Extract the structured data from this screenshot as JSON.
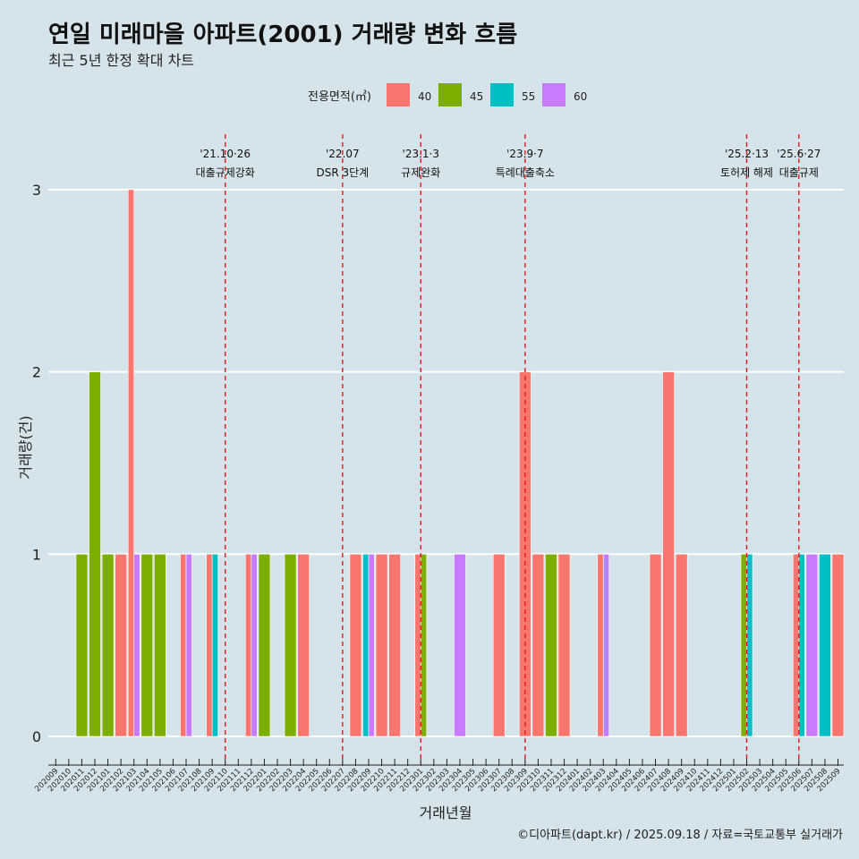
{
  "header": {
    "title": "연일 미래마을 아파트(2001) 거래량 변화 흐름",
    "subtitle": "최근 5년 한정 확대 차트"
  },
  "caption": "©디아파트(dapt.kr) / 2025.09.18 / 자료=국토교통부 실거래가",
  "colors": {
    "background": "#d5e3ea",
    "grid": "#ffffff",
    "event_line": "#e41a1c",
    "series": {
      "40": "#f8766d",
      "45": "#7cae00",
      "55": "#00bfc4",
      "60": "#c77cff"
    }
  },
  "chart_data": {
    "type": "bar",
    "stacking": "dodge",
    "xlabel": "거래년월",
    "ylabel": "거래량(건)",
    "ylim": [
      0,
      3
    ],
    "yticks": [
      0,
      1,
      2,
      3
    ],
    "legend": {
      "title": "전용면적(㎡)",
      "position": "top",
      "entries": [
        "40",
        "45",
        "55",
        "60"
      ]
    },
    "categories": [
      "202009",
      "202010",
      "202011",
      "202012",
      "202101",
      "202102",
      "202103",
      "202104",
      "202105",
      "202106",
      "202107",
      "202108",
      "202109",
      "202110",
      "202111",
      "202112",
      "202201",
      "202202",
      "202203",
      "202204",
      "202205",
      "202206",
      "202207",
      "202208",
      "202209",
      "202210",
      "202211",
      "202212",
      "202301",
      "202302",
      "202303",
      "202304",
      "202305",
      "202306",
      "202307",
      "202308",
      "202309",
      "202310",
      "202311",
      "202312",
      "202401",
      "202402",
      "202403",
      "202404",
      "202405",
      "202406",
      "202407",
      "202408",
      "202409",
      "202410",
      "202411",
      "202412",
      "202501",
      "202502",
      "202503",
      "202504",
      "202505",
      "202506",
      "202507",
      "202508",
      "202509"
    ],
    "data": [
      {
        "month": "202011",
        "area": "45",
        "value": 1
      },
      {
        "month": "202012",
        "area": "45",
        "value": 2
      },
      {
        "month": "202101",
        "area": "45",
        "value": 1
      },
      {
        "month": "202102",
        "area": "40",
        "value": 1
      },
      {
        "month": "202103",
        "area": "40",
        "value": 3
      },
      {
        "month": "202103",
        "area": "60",
        "value": 1
      },
      {
        "month": "202104",
        "area": "45",
        "value": 1
      },
      {
        "month": "202105",
        "area": "45",
        "value": 1
      },
      {
        "month": "202107",
        "area": "40",
        "value": 1
      },
      {
        "month": "202107",
        "area": "60",
        "value": 1
      },
      {
        "month": "202109",
        "area": "40",
        "value": 1
      },
      {
        "month": "202109",
        "area": "55",
        "value": 1
      },
      {
        "month": "202112",
        "area": "40",
        "value": 1
      },
      {
        "month": "202112",
        "area": "60",
        "value": 1
      },
      {
        "month": "202201",
        "area": "45",
        "value": 1
      },
      {
        "month": "202203",
        "area": "45",
        "value": 1
      },
      {
        "month": "202204",
        "area": "40",
        "value": 1
      },
      {
        "month": "202208",
        "area": "40",
        "value": 1
      },
      {
        "month": "202209",
        "area": "55",
        "value": 1
      },
      {
        "month": "202209",
        "area": "60",
        "value": 1
      },
      {
        "month": "202210",
        "area": "40",
        "value": 1
      },
      {
        "month": "202211",
        "area": "40",
        "value": 1
      },
      {
        "month": "202301",
        "area": "40",
        "value": 1
      },
      {
        "month": "202301",
        "area": "45",
        "value": 1
      },
      {
        "month": "202304",
        "area": "60",
        "value": 1
      },
      {
        "month": "202307",
        "area": "40",
        "value": 1
      },
      {
        "month": "202309",
        "area": "40",
        "value": 2
      },
      {
        "month": "202310",
        "area": "40",
        "value": 1
      },
      {
        "month": "202311",
        "area": "45",
        "value": 1
      },
      {
        "month": "202312",
        "area": "40",
        "value": 1
      },
      {
        "month": "202403",
        "area": "40",
        "value": 1
      },
      {
        "month": "202403",
        "area": "60",
        "value": 1
      },
      {
        "month": "202407",
        "area": "40",
        "value": 1
      },
      {
        "month": "202408",
        "area": "40",
        "value": 2
      },
      {
        "month": "202409",
        "area": "40",
        "value": 1
      },
      {
        "month": "202502",
        "area": "45",
        "value": 1
      },
      {
        "month": "202502",
        "area": "55",
        "value": 1
      },
      {
        "month": "202506",
        "area": "55",
        "value": 1
      },
      {
        "month": "202506",
        "area": "40",
        "value": 1
      },
      {
        "month": "202507",
        "area": "60",
        "value": 1
      },
      {
        "month": "202508",
        "area": "55",
        "value": 1
      },
      {
        "month": "202509",
        "area": "40",
        "value": 1
      }
    ],
    "events": [
      {
        "month": "202110",
        "date": "'21.10·26",
        "label": "대출규제강화"
      },
      {
        "month": "202207",
        "date": "'22.07",
        "label": "DSR 3단계"
      },
      {
        "month": "202301",
        "date": "'23.1·3",
        "label": "규제완화"
      },
      {
        "month": "202309",
        "date": "'23.9·7",
        "label": "특례대출축소"
      },
      {
        "month": "202502",
        "date": "'25.2·13",
        "label": "토허제 해제"
      },
      {
        "month": "202506",
        "date": "'25.6·27",
        "label": "대출규제"
      }
    ]
  }
}
